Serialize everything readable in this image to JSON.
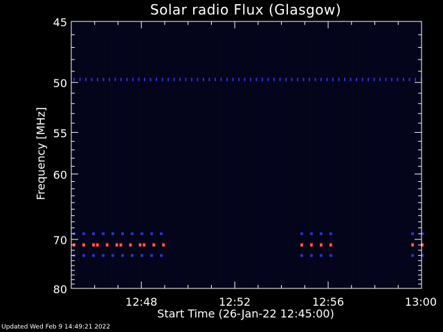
{
  "chart_data": {
    "type": "heatmap",
    "title": "Solar radio Flux (Glasgow)",
    "xlabel": "Start Time (26-Jan-22 12:45:00)",
    "ylabel": "Frequency [MHz]",
    "xlim": [
      "12:45:00",
      "13:00:00"
    ],
    "ylim": [
      80,
      45
    ],
    "y_scale": "reciprocal",
    "x_tick_labels": [
      "12:48",
      "12:52",
      "12:56",
      "13:00"
    ],
    "y_tick_labels": [
      "45",
      "50",
      "55",
      "60",
      "70",
      "80"
    ],
    "background_color": "#04041a",
    "features": [
      {
        "freq_mhz": 71,
        "kind": "intermittent strong interference",
        "color": "#ff3a2a",
        "segments": [
          [
            "12:45:00",
            "12:46:00"
          ],
          [
            "12:46:00",
            "12:47:00"
          ],
          [
            "12:47:00",
            "12:48:00"
          ],
          [
            "12:48:00",
            "12:49:00"
          ],
          [
            "12:54:45",
            "12:56:05"
          ],
          [
            "12:59:30",
            "13:00:00"
          ]
        ]
      },
      {
        "freq_mhz": 69,
        "kind": "weak interference",
        "color": "#2233cc",
        "segments": [
          [
            "12:45:00",
            "12:49:00"
          ],
          [
            "12:54:45",
            "12:56:05"
          ],
          [
            "12:59:30",
            "13:00:00"
          ]
        ]
      },
      {
        "freq_mhz": 73,
        "kind": "weak interference",
        "color": "#2233cc",
        "segments": [
          [
            "12:45:00",
            "12:49:00"
          ],
          [
            "12:54:45",
            "12:56:05"
          ],
          [
            "12:59:30",
            "13:00:00"
          ]
        ]
      },
      {
        "freq_mhz": 49.7,
        "kind": "periodic weak interference",
        "color": "#2a2aee",
        "segments": [
          [
            "12:45:00",
            "13:00:00"
          ]
        ]
      }
    ]
  },
  "footer": {
    "updated": "Updated Wed Feb  9 14:49:21 2022"
  }
}
